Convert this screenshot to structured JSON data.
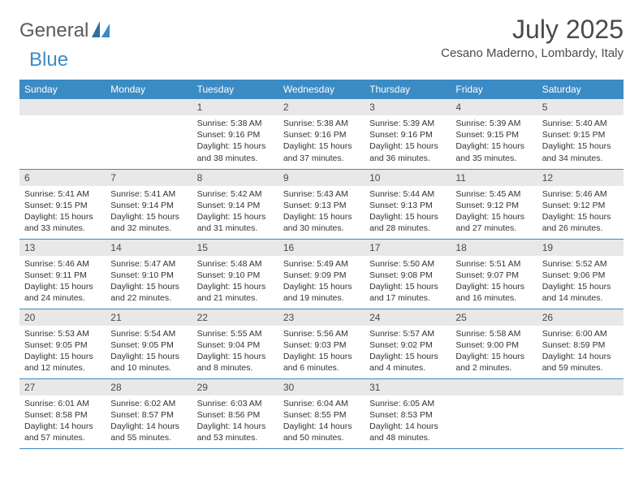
{
  "logo": {
    "main": "General",
    "sub": "Blue"
  },
  "title": {
    "month": "July 2025",
    "location": "Cesano Maderno, Lombardy, Italy"
  },
  "colors": {
    "header_bg": "#3b8bc4",
    "header_text": "#ffffff",
    "daynum_bg": "#e8e8e8",
    "border": "#3b8bc4",
    "logo_gray": "#5a5a5a",
    "logo_blue": "#3b8bc4",
    "text": "#333333",
    "title_text": "#4a4a4a",
    "page_bg": "#ffffff"
  },
  "day_names": [
    "Sunday",
    "Monday",
    "Tuesday",
    "Wednesday",
    "Thursday",
    "Friday",
    "Saturday"
  ],
  "weeks": [
    [
      null,
      null,
      {
        "n": "1",
        "sunrise": "Sunrise: 5:38 AM",
        "sunset": "Sunset: 9:16 PM",
        "daylight": "Daylight: 15 hours and 38 minutes."
      },
      {
        "n": "2",
        "sunrise": "Sunrise: 5:38 AM",
        "sunset": "Sunset: 9:16 PM",
        "daylight": "Daylight: 15 hours and 37 minutes."
      },
      {
        "n": "3",
        "sunrise": "Sunrise: 5:39 AM",
        "sunset": "Sunset: 9:16 PM",
        "daylight": "Daylight: 15 hours and 36 minutes."
      },
      {
        "n": "4",
        "sunrise": "Sunrise: 5:39 AM",
        "sunset": "Sunset: 9:15 PM",
        "daylight": "Daylight: 15 hours and 35 minutes."
      },
      {
        "n": "5",
        "sunrise": "Sunrise: 5:40 AM",
        "sunset": "Sunset: 9:15 PM",
        "daylight": "Daylight: 15 hours and 34 minutes."
      }
    ],
    [
      {
        "n": "6",
        "sunrise": "Sunrise: 5:41 AM",
        "sunset": "Sunset: 9:15 PM",
        "daylight": "Daylight: 15 hours and 33 minutes."
      },
      {
        "n": "7",
        "sunrise": "Sunrise: 5:41 AM",
        "sunset": "Sunset: 9:14 PM",
        "daylight": "Daylight: 15 hours and 32 minutes."
      },
      {
        "n": "8",
        "sunrise": "Sunrise: 5:42 AM",
        "sunset": "Sunset: 9:14 PM",
        "daylight": "Daylight: 15 hours and 31 minutes."
      },
      {
        "n": "9",
        "sunrise": "Sunrise: 5:43 AM",
        "sunset": "Sunset: 9:13 PM",
        "daylight": "Daylight: 15 hours and 30 minutes."
      },
      {
        "n": "10",
        "sunrise": "Sunrise: 5:44 AM",
        "sunset": "Sunset: 9:13 PM",
        "daylight": "Daylight: 15 hours and 28 minutes."
      },
      {
        "n": "11",
        "sunrise": "Sunrise: 5:45 AM",
        "sunset": "Sunset: 9:12 PM",
        "daylight": "Daylight: 15 hours and 27 minutes."
      },
      {
        "n": "12",
        "sunrise": "Sunrise: 5:46 AM",
        "sunset": "Sunset: 9:12 PM",
        "daylight": "Daylight: 15 hours and 26 minutes."
      }
    ],
    [
      {
        "n": "13",
        "sunrise": "Sunrise: 5:46 AM",
        "sunset": "Sunset: 9:11 PM",
        "daylight": "Daylight: 15 hours and 24 minutes."
      },
      {
        "n": "14",
        "sunrise": "Sunrise: 5:47 AM",
        "sunset": "Sunset: 9:10 PM",
        "daylight": "Daylight: 15 hours and 22 minutes."
      },
      {
        "n": "15",
        "sunrise": "Sunrise: 5:48 AM",
        "sunset": "Sunset: 9:10 PM",
        "daylight": "Daylight: 15 hours and 21 minutes."
      },
      {
        "n": "16",
        "sunrise": "Sunrise: 5:49 AM",
        "sunset": "Sunset: 9:09 PM",
        "daylight": "Daylight: 15 hours and 19 minutes."
      },
      {
        "n": "17",
        "sunrise": "Sunrise: 5:50 AM",
        "sunset": "Sunset: 9:08 PM",
        "daylight": "Daylight: 15 hours and 17 minutes."
      },
      {
        "n": "18",
        "sunrise": "Sunrise: 5:51 AM",
        "sunset": "Sunset: 9:07 PM",
        "daylight": "Daylight: 15 hours and 16 minutes."
      },
      {
        "n": "19",
        "sunrise": "Sunrise: 5:52 AM",
        "sunset": "Sunset: 9:06 PM",
        "daylight": "Daylight: 15 hours and 14 minutes."
      }
    ],
    [
      {
        "n": "20",
        "sunrise": "Sunrise: 5:53 AM",
        "sunset": "Sunset: 9:05 PM",
        "daylight": "Daylight: 15 hours and 12 minutes."
      },
      {
        "n": "21",
        "sunrise": "Sunrise: 5:54 AM",
        "sunset": "Sunset: 9:05 PM",
        "daylight": "Daylight: 15 hours and 10 minutes."
      },
      {
        "n": "22",
        "sunrise": "Sunrise: 5:55 AM",
        "sunset": "Sunset: 9:04 PM",
        "daylight": "Daylight: 15 hours and 8 minutes."
      },
      {
        "n": "23",
        "sunrise": "Sunrise: 5:56 AM",
        "sunset": "Sunset: 9:03 PM",
        "daylight": "Daylight: 15 hours and 6 minutes."
      },
      {
        "n": "24",
        "sunrise": "Sunrise: 5:57 AM",
        "sunset": "Sunset: 9:02 PM",
        "daylight": "Daylight: 15 hours and 4 minutes."
      },
      {
        "n": "25",
        "sunrise": "Sunrise: 5:58 AM",
        "sunset": "Sunset: 9:00 PM",
        "daylight": "Daylight: 15 hours and 2 minutes."
      },
      {
        "n": "26",
        "sunrise": "Sunrise: 6:00 AM",
        "sunset": "Sunset: 8:59 PM",
        "daylight": "Daylight: 14 hours and 59 minutes."
      }
    ],
    [
      {
        "n": "27",
        "sunrise": "Sunrise: 6:01 AM",
        "sunset": "Sunset: 8:58 PM",
        "daylight": "Daylight: 14 hours and 57 minutes."
      },
      {
        "n": "28",
        "sunrise": "Sunrise: 6:02 AM",
        "sunset": "Sunset: 8:57 PM",
        "daylight": "Daylight: 14 hours and 55 minutes."
      },
      {
        "n": "29",
        "sunrise": "Sunrise: 6:03 AM",
        "sunset": "Sunset: 8:56 PM",
        "daylight": "Daylight: 14 hours and 53 minutes."
      },
      {
        "n": "30",
        "sunrise": "Sunrise: 6:04 AM",
        "sunset": "Sunset: 8:55 PM",
        "daylight": "Daylight: 14 hours and 50 minutes."
      },
      {
        "n": "31",
        "sunrise": "Sunrise: 6:05 AM",
        "sunset": "Sunset: 8:53 PM",
        "daylight": "Daylight: 14 hours and 48 minutes."
      },
      null,
      null
    ]
  ]
}
